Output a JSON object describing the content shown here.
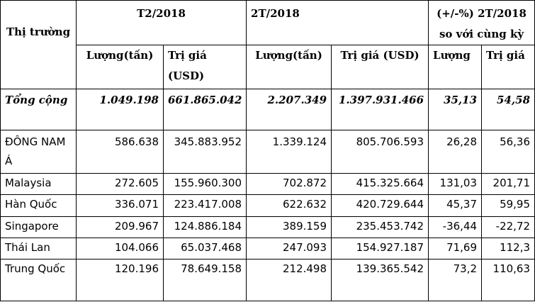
{
  "table": {
    "header": {
      "market": "Thị trường",
      "t2_2018": "T2/2018",
      "two_t_2018": "2T/2018",
      "change_line1": "(+/-%) 2T/2018",
      "change_line2": "so với cùng kỳ",
      "volume": "Lượng(tấn)",
      "value": "Trị giá (USD)",
      "change_volume": "Lượng",
      "change_value": "Trị giá"
    },
    "total": {
      "market": "Tổng cộng",
      "t2_volume": "1.049.198",
      "t2_value": "661.865.042",
      "ytd_volume": "2.207.349",
      "ytd_value": "1.397.931.466",
      "chg_volume": "35,13",
      "chg_value": "54,58"
    },
    "rows": [
      {
        "market": "ĐÔNG NAM Á",
        "t2_volume": "586.638",
        "t2_value": "345.883.952",
        "ytd_volume": "1.339.124",
        "ytd_value": "805.706.593",
        "chg_volume": "26,28",
        "chg_value": "56,36"
      },
      {
        "market": "Malaysia",
        "t2_volume": "272.605",
        "t2_value": "155.960.300",
        "ytd_volume": "702.872",
        "ytd_value": "415.325.664",
        "chg_volume": "131,03",
        "chg_value": "201,71"
      },
      {
        "market": "Hàn Quốc",
        "t2_volume": "336.071",
        "t2_value": "223.417.008",
        "ytd_volume": "622.632",
        "ytd_value": "420.729.644",
        "chg_volume": "45,37",
        "chg_value": "59,95"
      },
      {
        "market": "Singapore",
        "t2_volume": "209.967",
        "t2_value": "124.886.184",
        "ytd_volume": "389.159",
        "ytd_value": "235.453.742",
        "chg_volume": "-36,44",
        "chg_value": "-22,72"
      },
      {
        "market": "Thái Lan",
        "t2_volume": "104.066",
        "t2_value": "65.037.468",
        "ytd_volume": "247.093",
        "ytd_value": "154.927.187",
        "chg_volume": "71,69",
        "chg_value": "112,3"
      },
      {
        "market": "Trung Quốc",
        "t2_volume": "120.196",
        "t2_value": "78.649.158",
        "ytd_volume": "212.498",
        "ytd_value": "139.365.542",
        "chg_volume": "73,2",
        "chg_value": "110,63"
      }
    ]
  }
}
